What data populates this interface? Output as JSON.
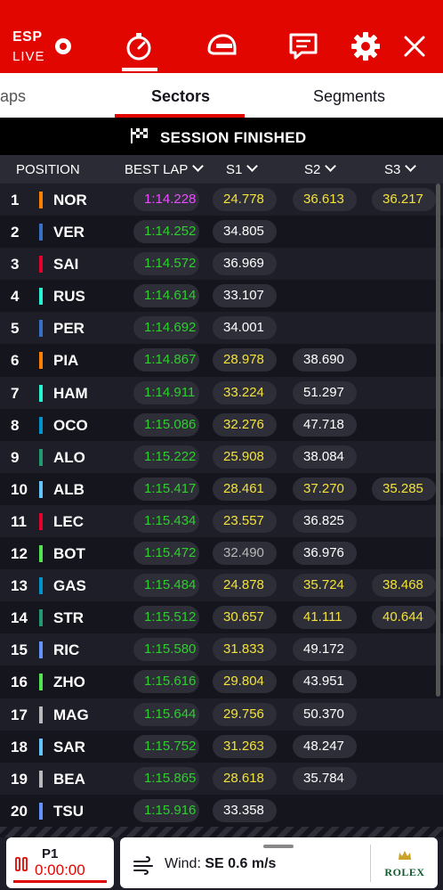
{
  "topbar": {
    "country": "ESP",
    "live": "LIVE",
    "colors": {
      "brand_red": "#e10600"
    },
    "icons": [
      "live-dot-icon",
      "timer-icon",
      "helmet-icon",
      "race-control-icon",
      "gear-icon",
      "close-icon"
    ]
  },
  "tabs": {
    "laps": "aps",
    "sectors": "Sectors",
    "segments": "Segments"
  },
  "banner": {
    "text": "SESSION FINISHED"
  },
  "header": {
    "position": "POSITION",
    "best_lap": "BEST LAP",
    "s1": "S1",
    "s2": "S2",
    "s3": "S3"
  },
  "rows": [
    {
      "pos": "1",
      "code": "NOR",
      "team_color": "#ff8000",
      "lap": "1:14.228",
      "lap_c": "purple",
      "s1": "24.778",
      "s1_c": "yellow",
      "s2": "36.613",
      "s2_c": "yellow",
      "s3": "36.217",
      "s3_c": "yellow"
    },
    {
      "pos": "2",
      "code": "VER",
      "team_color": "#3671c6",
      "lap": "1:14.252",
      "lap_c": "green",
      "s1": "34.805",
      "s1_c": "white",
      "s2": "",
      "s2_c": "",
      "s3": "",
      "s3_c": ""
    },
    {
      "pos": "3",
      "code": "SAI",
      "team_color": "#e8002d",
      "lap": "1:14.572",
      "lap_c": "green",
      "s1": "36.969",
      "s1_c": "white",
      "s2": "",
      "s2_c": "",
      "s3": "",
      "s3_c": ""
    },
    {
      "pos": "4",
      "code": "RUS",
      "team_color": "#27f4d2",
      "lap": "1:14.614",
      "lap_c": "green",
      "s1": "33.107",
      "s1_c": "white",
      "s2": "",
      "s2_c": "",
      "s3": "",
      "s3_c": ""
    },
    {
      "pos": "5",
      "code": "PER",
      "team_color": "#3671c6",
      "lap": "1:14.692",
      "lap_c": "green",
      "s1": "34.001",
      "s1_c": "white",
      "s2": "",
      "s2_c": "",
      "s3": "",
      "s3_c": ""
    },
    {
      "pos": "6",
      "code": "PIA",
      "team_color": "#ff8000",
      "lap": "1:14.867",
      "lap_c": "green",
      "s1": "28.978",
      "s1_c": "yellow",
      "s2": "38.690",
      "s2_c": "white",
      "s3": "",
      "s3_c": ""
    },
    {
      "pos": "7",
      "code": "HAM",
      "team_color": "#27f4d2",
      "lap": "1:14.911",
      "lap_c": "green",
      "s1": "33.224",
      "s1_c": "yellow",
      "s2": "51.297",
      "s2_c": "white",
      "s3": "",
      "s3_c": ""
    },
    {
      "pos": "8",
      "code": "OCO",
      "team_color": "#0093cc",
      "lap": "1:15.086",
      "lap_c": "green",
      "s1": "32.276",
      "s1_c": "yellow",
      "s2": "47.718",
      "s2_c": "white",
      "s3": "",
      "s3_c": ""
    },
    {
      "pos": "9",
      "code": "ALO",
      "team_color": "#229971",
      "lap": "1:15.222",
      "lap_c": "green",
      "s1": "25.908",
      "s1_c": "yellow",
      "s2": "38.084",
      "s2_c": "white",
      "s3": "",
      "s3_c": ""
    },
    {
      "pos": "10",
      "code": "ALB",
      "team_color": "#64c4ff",
      "lap": "1:15.417",
      "lap_c": "green",
      "s1": "28.461",
      "s1_c": "yellow",
      "s2": "37.270",
      "s2_c": "yellow",
      "s3": "35.285",
      "s3_c": "yellow"
    },
    {
      "pos": "11",
      "code": "LEC",
      "team_color": "#e8002d",
      "lap": "1:15.434",
      "lap_c": "green",
      "s1": "23.557",
      "s1_c": "yellow",
      "s2": "36.825",
      "s2_c": "white",
      "s3": "",
      "s3_c": ""
    },
    {
      "pos": "12",
      "code": "BOT",
      "team_color": "#52e252",
      "lap": "1:15.472",
      "lap_c": "green",
      "s1": "32.490",
      "s1_c": "grey",
      "s2": "36.976",
      "s2_c": "white",
      "s3": "",
      "s3_c": ""
    },
    {
      "pos": "13",
      "code": "GAS",
      "team_color": "#0093cc",
      "lap": "1:15.484",
      "lap_c": "green",
      "s1": "24.878",
      "s1_c": "yellow",
      "s2": "35.724",
      "s2_c": "yellow",
      "s3": "38.468",
      "s3_c": "yellow"
    },
    {
      "pos": "14",
      "code": "STR",
      "team_color": "#229971",
      "lap": "1:15.512",
      "lap_c": "green",
      "s1": "30.657",
      "s1_c": "yellow",
      "s2": "41.111",
      "s2_c": "yellow",
      "s3": "40.644",
      "s3_c": "yellow"
    },
    {
      "pos": "15",
      "code": "RIC",
      "team_color": "#6692ff",
      "lap": "1:15.580",
      "lap_c": "green",
      "s1": "31.833",
      "s1_c": "yellow",
      "s2": "49.172",
      "s2_c": "white",
      "s3": "",
      "s3_c": ""
    },
    {
      "pos": "16",
      "code": "ZHO",
      "team_color": "#52e252",
      "lap": "1:15.616",
      "lap_c": "green",
      "s1": "29.804",
      "s1_c": "yellow",
      "s2": "43.951",
      "s2_c": "white",
      "s3": "",
      "s3_c": ""
    },
    {
      "pos": "17",
      "code": "MAG",
      "team_color": "#b6babd",
      "lap": "1:15.644",
      "lap_c": "green",
      "s1": "29.756",
      "s1_c": "yellow",
      "s2": "50.370",
      "s2_c": "white",
      "s3": "",
      "s3_c": ""
    },
    {
      "pos": "18",
      "code": "SAR",
      "team_color": "#64c4ff",
      "lap": "1:15.752",
      "lap_c": "green",
      "s1": "31.263",
      "s1_c": "yellow",
      "s2": "48.247",
      "s2_c": "white",
      "s3": "",
      "s3_c": ""
    },
    {
      "pos": "19",
      "code": "BEA",
      "team_color": "#b6babd",
      "lap": "1:15.865",
      "lap_c": "green",
      "s1": "28.618",
      "s1_c": "yellow",
      "s2": "35.784",
      "s2_c": "white",
      "s3": "",
      "s3_c": ""
    },
    {
      "pos": "20",
      "code": "TSU",
      "team_color": "#6692ff",
      "lap": "1:15.916",
      "lap_c": "green",
      "s1": "33.358",
      "s1_c": "white",
      "s2": "",
      "s2_c": "",
      "s3": "",
      "s3_c": ""
    }
  ],
  "footer": {
    "p1_label": "P1",
    "p1_time": "0:00:00",
    "wind_label": "Wind:",
    "wind_value": "SE 0.6 m/s",
    "sponsor": "ROLEX"
  }
}
